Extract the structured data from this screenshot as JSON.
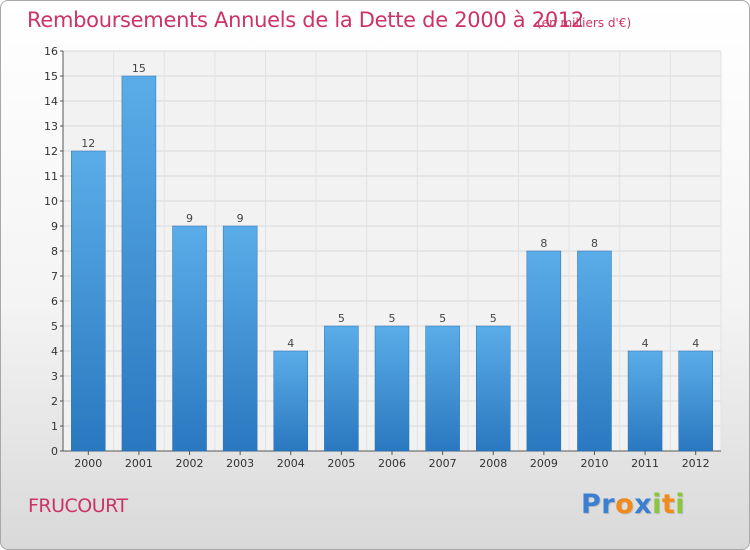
{
  "title": "Remboursements Annuels de la Dette de 2000 à 2012",
  "subtitle": "(en milliers d'€)",
  "commune": "FRUCOURT",
  "logo": {
    "text": "Proxiti",
    "letters": [
      {
        "ch": "P",
        "color": "#3a7fd0"
      },
      {
        "ch": "r",
        "color": "#3a7fd0"
      },
      {
        "ch": "o",
        "color": "#f08a1c"
      },
      {
        "ch": "x",
        "color": "#3a7fd0"
      },
      {
        "ch": "i",
        "color": "#8cc63f"
      },
      {
        "ch": "t",
        "color": "#f08a1c"
      },
      {
        "ch": "i",
        "color": "#8cc63f"
      }
    ]
  },
  "chart_data": {
    "type": "bar",
    "categories": [
      "2000",
      "2001",
      "2002",
      "2003",
      "2004",
      "2005",
      "2006",
      "2007",
      "2008",
      "2009",
      "2010",
      "2011",
      "2012"
    ],
    "values": [
      12,
      15,
      9,
      9,
      4,
      5,
      5,
      5,
      5,
      8,
      8,
      4,
      4
    ],
    "data_labels": [
      "12",
      "15",
      "9",
      "9",
      "4",
      "5",
      "5",
      "5",
      "5",
      "8",
      "8",
      "4",
      "4"
    ],
    "y_ticks": [
      "0",
      "1",
      "2",
      "3",
      "4",
      "5",
      "6",
      "7",
      "8",
      "9",
      "10",
      "11",
      "12",
      "13",
      "14",
      "15",
      "16"
    ],
    "ylim": [
      0,
      16
    ],
    "grid": true,
    "bar_color": "#3f93d6",
    "title": "Remboursements Annuels de la Dette de 2000 à 2012",
    "xlabel": "",
    "ylabel": ""
  }
}
